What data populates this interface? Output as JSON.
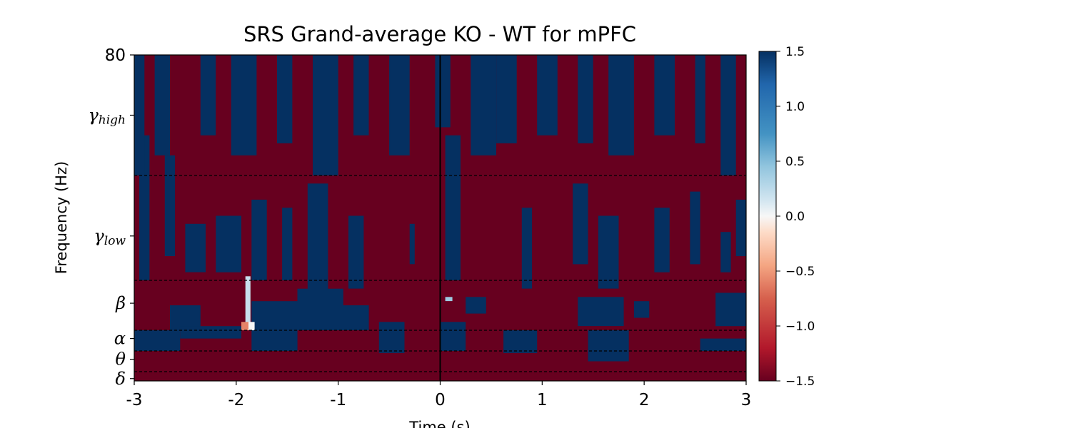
{
  "chart_data": {
    "type": "heatmap",
    "title": "SRS Grand-average KO - WT for mPFC",
    "xlabel": "Time (s)",
    "ylabel": "Frequency (Hz)",
    "xlim": [
      -3,
      3
    ],
    "ylim": [
      0,
      80
    ],
    "x_ticks": [
      -3,
      -2,
      -1,
      0,
      1,
      2,
      3
    ],
    "x_tick_labels": [
      "-3",
      "-2",
      "-1",
      "0",
      "1",
      "2",
      "3"
    ],
    "y_ticks": [
      {
        "value": 0.5,
        "label": "δ"
      },
      {
        "value": 5,
        "label": "θ"
      },
      {
        "value": 10,
        "label": "α"
      },
      {
        "value": 18.5,
        "label": "β"
      },
      {
        "value": 35,
        "label": "γ",
        "sub": "low"
      },
      {
        "value": 65,
        "label": "γ",
        "sub": "high"
      },
      {
        "value": 80,
        "label": "80"
      }
    ],
    "band_boundaries_hz": [
      2,
      7,
      12,
      24,
      50
    ],
    "event_line_time_s": 0,
    "colormap": "RdBu_r",
    "colorbar": {
      "min": -1.5,
      "max": 1.5,
      "ticks": [
        1.5,
        1.0,
        0.5,
        0.0,
        -0.5,
        -1.0,
        -1.5
      ],
      "tick_labels": [
        "1.5",
        "1.0",
        "0.5",
        "0.0",
        "−0.5",
        "−1.0",
        "−1.5"
      ]
    },
    "grid": false,
    "positive_regions": [
      {
        "t": [
          -3.0,
          -2.55
        ],
        "f": [
          7,
          12
        ],
        "v": 1.5
      },
      {
        "t": [
          -2.65,
          -2.35
        ],
        "f": [
          12,
          18
        ],
        "v": 1.5
      },
      {
        "t": [
          -2.55,
          -1.95
        ],
        "f": [
          10,
          13
        ],
        "v": 1.5
      },
      {
        "t": [
          -1.85,
          -1.4
        ],
        "f": [
          7,
          19
        ],
        "v": 1.5
      },
      {
        "t": [
          -1.4,
          -0.95
        ],
        "f": [
          12,
          22
        ],
        "v": 1.5
      },
      {
        "t": [
          -1.0,
          -0.7
        ],
        "f": [
          12,
          18
        ],
        "v": 1.5
      },
      {
        "t": [
          -0.6,
          -0.35
        ],
        "f": [
          6.5,
          14
        ],
        "v": 1.5
      },
      {
        "t": [
          0.0,
          0.25
        ],
        "f": [
          7,
          14
        ],
        "v": 1.5
      },
      {
        "t": [
          0.25,
          0.45
        ],
        "f": [
          16,
          20
        ],
        "v": 1.5
      },
      {
        "t": [
          0.62,
          0.95
        ],
        "f": [
          6.5,
          12
        ],
        "v": 1.5
      },
      {
        "t": [
          1.45,
          1.85
        ],
        "f": [
          4.5,
          12
        ],
        "v": 1.5
      },
      {
        "t": [
          1.35,
          1.8
        ],
        "f": [
          13,
          20
        ],
        "v": 1.5
      },
      {
        "t": [
          1.9,
          2.05
        ],
        "f": [
          15,
          19
        ],
        "v": 1.5
      },
      {
        "t": [
          2.55,
          3.0
        ],
        "f": [
          7,
          10
        ],
        "v": 1.5
      },
      {
        "t": [
          2.7,
          3.0
        ],
        "f": [
          13,
          21
        ],
        "v": 1.5
      },
      {
        "t": [
          -2.95,
          -2.85
        ],
        "f": [
          24,
          60
        ],
        "v": 1.5
      },
      {
        "t": [
          -2.7,
          -2.6
        ],
        "f": [
          30,
          55
        ],
        "v": 1.5
      },
      {
        "t": [
          -2.5,
          -2.3
        ],
        "f": [
          26,
          38
        ],
        "v": 1.5
      },
      {
        "t": [
          -2.2,
          -1.95
        ],
        "f": [
          26,
          40
        ],
        "v": 1.5
      },
      {
        "t": [
          -1.85,
          -1.7
        ],
        "f": [
          24,
          44
        ],
        "v": 1.5
      },
      {
        "t": [
          -1.55,
          -1.45
        ],
        "f": [
          24,
          42
        ],
        "v": 1.5
      },
      {
        "t": [
          -1.3,
          -1.1
        ],
        "f": [
          20,
          48
        ],
        "v": 1.5
      },
      {
        "t": [
          -0.9,
          -0.75
        ],
        "f": [
          22,
          40
        ],
        "v": 1.5
      },
      {
        "t": [
          -0.3,
          -0.25
        ],
        "f": [
          28,
          38
        ],
        "v": 1.5
      },
      {
        "t": [
          0.05,
          0.2
        ],
        "f": [
          24,
          60
        ],
        "v": 1.5
      },
      {
        "t": [
          0.8,
          0.9
        ],
        "f": [
          22,
          42
        ],
        "v": 1.5
      },
      {
        "t": [
          1.3,
          1.45
        ],
        "f": [
          28,
          48
        ],
        "v": 1.5
      },
      {
        "t": [
          1.55,
          1.75
        ],
        "f": [
          22,
          40
        ],
        "v": 1.5
      },
      {
        "t": [
          2.1,
          2.25
        ],
        "f": [
          26,
          42
        ],
        "v": 1.5
      },
      {
        "t": [
          2.45,
          2.55
        ],
        "f": [
          28,
          46
        ],
        "v": 1.5
      },
      {
        "t": [
          2.75,
          2.85
        ],
        "f": [
          26,
          36
        ],
        "v": 1.5
      },
      {
        "t": [
          2.9,
          3.0
        ],
        "f": [
          30,
          44
        ],
        "v": 1.5
      },
      {
        "t": [
          -3.0,
          -2.9
        ],
        "f": [
          50,
          80
        ],
        "v": 1.5
      },
      {
        "t": [
          -2.8,
          -2.65
        ],
        "f": [
          55,
          80
        ],
        "v": 1.5
      },
      {
        "t": [
          -2.35,
          -2.2
        ],
        "f": [
          60,
          80
        ],
        "v": 1.5
      },
      {
        "t": [
          -2.05,
          -1.8
        ],
        "f": [
          55,
          80
        ],
        "v": 1.5
      },
      {
        "t": [
          -1.6,
          -1.45
        ],
        "f": [
          58,
          80
        ],
        "v": 1.5
      },
      {
        "t": [
          -1.25,
          -1.0
        ],
        "f": [
          50,
          80
        ],
        "v": 1.5
      },
      {
        "t": [
          -0.85,
          -0.7
        ],
        "f": [
          60,
          80
        ],
        "v": 1.5
      },
      {
        "t": [
          -0.5,
          -0.3
        ],
        "f": [
          55,
          80
        ],
        "v": 1.5
      },
      {
        "t": [
          -0.05,
          0.1
        ],
        "f": [
          62,
          80
        ],
        "v": 1.5
      },
      {
        "t": [
          0.3,
          0.55
        ],
        "f": [
          55,
          80
        ],
        "v": 1.5
      },
      {
        "t": [
          0.55,
          0.75
        ],
        "f": [
          58,
          80
        ],
        "v": 1.5
      },
      {
        "t": [
          0.95,
          1.15
        ],
        "f": [
          60,
          80
        ],
        "v": 1.5
      },
      {
        "t": [
          1.35,
          1.5
        ],
        "f": [
          58,
          80
        ],
        "v": 1.5
      },
      {
        "t": [
          1.65,
          1.9
        ],
        "f": [
          55,
          80
        ],
        "v": 1.5
      },
      {
        "t": [
          2.1,
          2.3
        ],
        "f": [
          60,
          80
        ],
        "v": 1.5
      },
      {
        "t": [
          2.5,
          2.6
        ],
        "f": [
          58,
          80
        ],
        "v": 1.5
      },
      {
        "t": [
          2.75,
          2.9
        ],
        "f": [
          50,
          80
        ],
        "v": 1.5
      },
      {
        "t": [
          -1.91,
          -1.86
        ],
        "f": [
          12,
          25
        ],
        "v": 0.2
      },
      {
        "t": [
          -1.88,
          -1.82
        ],
        "f": [
          12,
          14
        ],
        "v": 0.0
      },
      {
        "t": [
          -1.95,
          -1.88
        ],
        "f": [
          12,
          14
        ],
        "v": -0.6
      },
      {
        "t": [
          0.05,
          0.12
        ],
        "f": [
          19,
          20
        ],
        "v": 0.4
      }
    ]
  }
}
